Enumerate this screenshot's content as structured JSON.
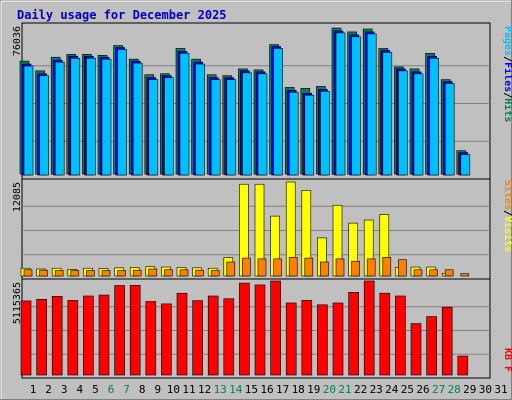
{
  "chart_data": {
    "type": "bar",
    "title": "Daily usage for December 2025",
    "days": [
      "1",
      "2",
      "3",
      "4",
      "5",
      "6",
      "7",
      "8",
      "9",
      "10",
      "11",
      "12",
      "13",
      "14",
      "15",
      "16",
      "17",
      "18",
      "19",
      "20",
      "21",
      "22",
      "23",
      "24",
      "25",
      "26",
      "27",
      "28",
      "29",
      "30",
      "31"
    ],
    "weekend_days": [
      "6",
      "7",
      "13",
      "14",
      "20",
      "21",
      "27",
      "28"
    ],
    "colors": {
      "frame": "#c0c0c0",
      "plot_bg": "#c0c0c0",
      "title": "#0000c0",
      "hits": "#00805c",
      "files": "#0000ff",
      "pages": "#00c0ff",
      "visits": "#ffff00",
      "sites": "#ff8000",
      "kbytes": "#ff0000",
      "weekend_label": "#00805c"
    },
    "panels": [
      {
        "name": "hits-files-pages",
        "y_max_label": "76036",
        "y_max": 76036,
        "series_labels": [
          "Pages",
          "Files",
          "Hits"
        ],
        "series": [
          {
            "name": "Hits",
            "values": [
              58000,
              53000,
              60000,
              61500,
              61500,
              61000,
              66000,
              59000,
              51000,
              51500,
              64500,
              59000,
              51000,
              50500,
              54000,
              53500,
              66500,
              44500,
              44000,
              45000,
              75000,
              73000,
              74500,
              64500,
              55000,
              54000,
              62000,
              48500,
              12000,
              0,
              0
            ]
          },
          {
            "name": "Files",
            "values": [
              57000,
              52000,
              59000,
              61000,
              61000,
              60500,
              65500,
              58500,
              50000,
              51000,
              63500,
              58000,
              50000,
              50000,
              53500,
              53000,
              66000,
              43500,
              42000,
              44000,
              74000,
              72000,
              73500,
              64000,
              54500,
              53000,
              61000,
              48000,
              11500,
              0,
              0
            ]
          },
          {
            "name": "Pages",
            "values": [
              56500,
              51500,
              58500,
              60500,
              60500,
              60000,
              65000,
              58000,
              49500,
              50500,
              63000,
              57500,
              49500,
              49500,
              53000,
              52500,
              65500,
              43000,
              41500,
              43500,
              73500,
              71500,
              73000,
              63500,
              54000,
              52500,
              60500,
              47500,
              11000,
              0,
              0
            ]
          }
        ]
      },
      {
        "name": "visits-sites",
        "y_max_label": "12085",
        "y_max": 12085,
        "series_labels": [
          "Sites",
          "Visits"
        ],
        "series": [
          {
            "name": "Visits",
            "values": [
              1000,
              900,
              1000,
              850,
              1000,
              950,
              1050,
              1100,
              1200,
              1150,
              1100,
              1050,
              1000,
              2350,
              11800,
              11800,
              7700,
              12085,
              11000,
              4900,
              9100,
              6800,
              7200,
              7900,
              1100,
              1150,
              1150,
              350,
              0,
              0,
              0
            ]
          },
          {
            "name": "Sites",
            "values": [
              800,
              750,
              700,
              700,
              700,
              700,
              700,
              750,
              900,
              800,
              800,
              750,
              700,
              1800,
              2300,
              2200,
              2200,
              2400,
              2300,
              1800,
              2200,
              1900,
              2200,
              2400,
              2100,
              800,
              800,
              800,
              300,
              0,
              0
            ]
          }
        ]
      },
      {
        "name": "kbytes",
        "y_max_label": "5115365",
        "y_max": 5115365,
        "series_labels": [
          "KB F"
        ],
        "series": [
          {
            "name": "KB F",
            "values": [
              4030000,
              4120000,
              4280000,
              4060000,
              4300000,
              4350000,
              4870000,
              4880000,
              4000000,
              3870000,
              4450000,
              4050000,
              4300000,
              4150000,
              5000000,
              4900000,
              5115365,
              3920000,
              4060000,
              3820000,
              3920000,
              4500000,
              5115365,
              4450000,
              4300000,
              2800000,
              3180000,
              3690000,
              1030000,
              0,
              0
            ]
          }
        ]
      }
    ]
  }
}
